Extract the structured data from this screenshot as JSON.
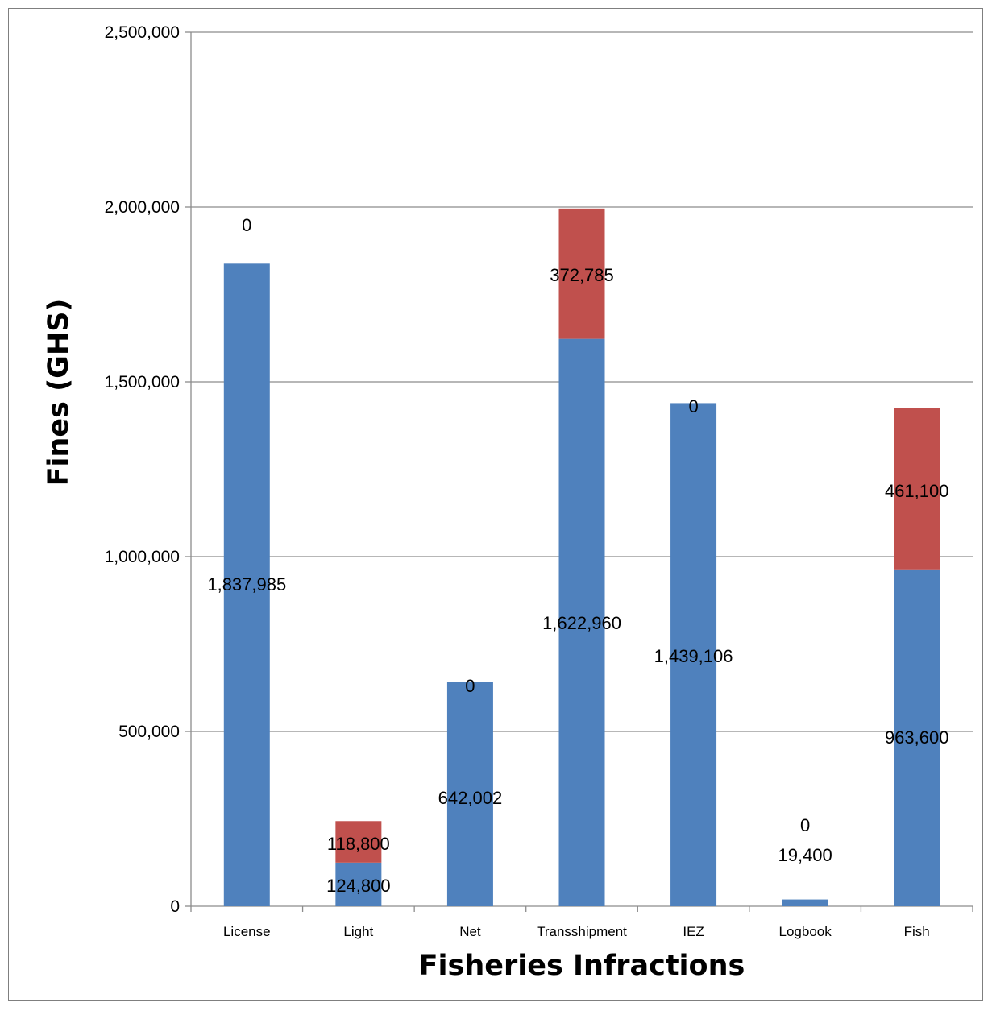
{
  "chart_data": {
    "type": "bar",
    "stacked": true,
    "title": "",
    "xlabel": "Fisheries Infractions",
    "ylabel": "Fines (GHS)",
    "ylim": [
      0,
      2500000
    ],
    "yticks": [
      0,
      500000,
      1000000,
      1500000,
      2000000,
      2500000
    ],
    "ytick_labels": [
      "0",
      "500,000",
      "1,000,000",
      "1,500,000",
      "2,000,000",
      "2,500,000"
    ],
    "grid": true,
    "legend": "none",
    "categories": [
      "License",
      "Light",
      "Net",
      "Transshipment",
      "IEZ",
      "Logbook",
      "Fish"
    ],
    "series": [
      {
        "color": "#4f81bd",
        "values": [
          1837985,
          124800,
          642002,
          1622960,
          1439106,
          19400,
          963600
        ],
        "labels": [
          "1,837,985",
          "124,800",
          "642,002",
          "1,622,960",
          "1,439,106",
          "19,400",
          "963,600"
        ]
      },
      {
        "color": "#c0504d",
        "values": [
          0,
          118800,
          0,
          372785,
          0,
          0,
          461100
        ],
        "labels": [
          "0",
          "118,800",
          "0",
          "372,785",
          "0",
          "0",
          "461,100"
        ]
      }
    ]
  }
}
